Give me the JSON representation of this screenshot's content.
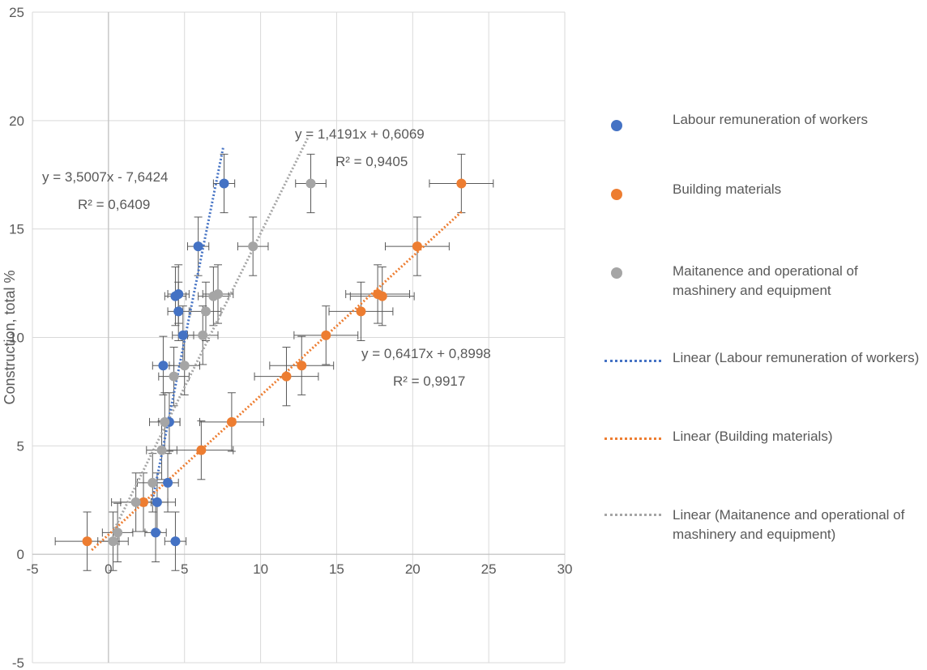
{
  "chart_data": {
    "type": "scatter",
    "ylabel": "Construction, total %",
    "xlabel": "",
    "xlim": [
      -5,
      30
    ],
    "ylim": [
      -5,
      25
    ],
    "x_ticks": [
      -5,
      0,
      5,
      10,
      15,
      20,
      25,
      30
    ],
    "y_ticks": [
      -5,
      0,
      5,
      10,
      15,
      20,
      25
    ],
    "grid": true,
    "legend_position": "right",
    "series": [
      {
        "name": "Labour remuneration of workers",
        "color": "#4472C4",
        "x": [
          4.4,
          3.1,
          3.2,
          3.9,
          4.0,
          3.6,
          4.9,
          4.6,
          4.4,
          4.6,
          5.9,
          7.6
        ],
        "y": [
          0.6,
          1.0,
          2.4,
          3.3,
          6.1,
          8.7,
          10.1,
          11.2,
          11.9,
          12.0,
          14.2,
          17.1
        ],
        "x_err": 0.7,
        "y_err": 1.35
      },
      {
        "name": "Building materials",
        "color": "#ED7D31",
        "x": [
          -1.4,
          2.3,
          6.1,
          8.1,
          11.7,
          12.7,
          14.3,
          16.6,
          17.7,
          18.0,
          20.3,
          23.2
        ],
        "y": [
          0.6,
          2.4,
          4.8,
          6.1,
          8.2,
          8.7,
          10.1,
          11.2,
          12.0,
          11.9,
          14.2,
          17.1
        ],
        "x_err": 2.1,
        "y_err": 1.35
      },
      {
        "name": "Maitanence and operational of mashinery and equipment",
        "color": "#A5A5A5",
        "x": [
          0.3,
          0.6,
          1.8,
          2.9,
          3.5,
          3.7,
          4.3,
          5.0,
          6.2,
          6.4,
          6.9,
          7.2,
          9.5,
          13.3
        ],
        "y": [
          0.6,
          1.0,
          2.4,
          3.3,
          4.8,
          6.1,
          8.2,
          8.7,
          10.1,
          11.2,
          11.9,
          12.0,
          14.2,
          17.1
        ],
        "x_err": 1.0,
        "y_err": 1.35
      }
    ],
    "trendlines": [
      {
        "name": "Linear (Labour remuneration of workers)",
        "color": "#4472C4",
        "slope": 3.5007,
        "intercept": -7.6424,
        "x_range": [
          2.9,
          7.55
        ],
        "equation": "y = 3,5007x  - 7,6424",
        "r2": "R² = 0,6409"
      },
      {
        "name": "Linear (Building materials)",
        "color": "#ED7D31",
        "slope": 0.6417,
        "intercept": 0.8998,
        "x_range": [
          -1.1,
          23.3
        ],
        "equation": "y = 0,6417x  + 0,8998",
        "r2": "R² = 0,9917"
      },
      {
        "name": "Linear (Maitanence and operational of mashinery and equipment)",
        "color": "#A5A5A5",
        "slope": 1.4191,
        "intercept": 0.6069,
        "x_range": [
          0.3,
          13.1
        ],
        "equation": "y = 1,4191x  + 0,6069",
        "r2": "R² = 0,9405"
      }
    ]
  },
  "legend": {
    "items": [
      {
        "label": "Labour remuneration of workers",
        "kind": "marker",
        "color": "#4472C4"
      },
      {
        "label": "Building materials",
        "kind": "marker",
        "color": "#ED7D31"
      },
      {
        "label": "Maitanence and operational of mashinery and equipment",
        "kind": "marker",
        "color": "#A5A5A5"
      },
      {
        "label": "Linear (Labour remuneration of workers)",
        "kind": "line",
        "color": "#4472C4"
      },
      {
        "label": "Linear (Building materials)",
        "kind": "line",
        "color": "#ED7D31"
      },
      {
        "label": "Linear (Maitanence and operational of mashinery and equipment)",
        "kind": "line",
        "color": "#A5A5A5"
      }
    ]
  }
}
